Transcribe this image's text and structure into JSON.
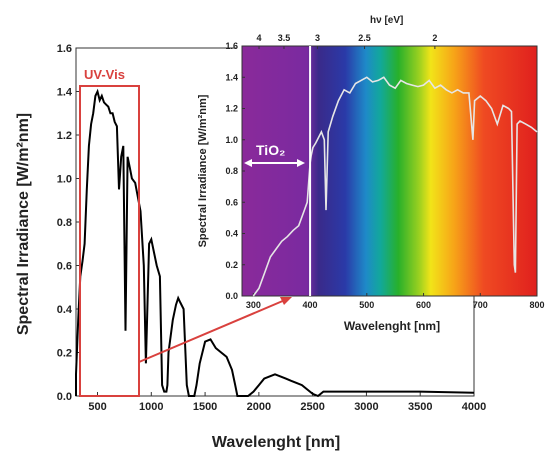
{
  "chart_data": [
    {
      "type": "line",
      "xlabel": "Wavelenght [nm]",
      "ylabel": "Spectral Irradiance [W/m²nm]",
      "xlim": [
        300,
        4000
      ],
      "ylim": [
        0,
        1.6
      ],
      "x_ticks": [
        500,
        1000,
        1500,
        2000,
        2500,
        3000,
        3500,
        4000
      ],
      "y_ticks": [
        0.0,
        0.2,
        0.4,
        0.6,
        0.8,
        1.0,
        1.2,
        1.4,
        1.6
      ],
      "series": [
        {
          "x": [
            280,
            300,
            320,
            340,
            360,
            380,
            400,
            420,
            440,
            460,
            480,
            500,
            520,
            540,
            560,
            580,
            600,
            620,
            640,
            660,
            680,
            700,
            720,
            740,
            760,
            780,
            800,
            820,
            850,
            900,
            930,
            950,
            980,
            1000,
            1050,
            1080,
            1100,
            1120,
            1140,
            1150,
            1160,
            1200,
            1230,
            1250,
            1270,
            1300,
            1330,
            1350,
            1380,
            1400,
            1420,
            1450,
            1500,
            1550,
            1600,
            1650,
            1700,
            1750,
            1780,
            1800,
            1850,
            1900,
            1950,
            2000,
            2050,
            2100,
            2150,
            2200,
            2250,
            2300,
            2350,
            2400,
            2450,
            2500,
            2550,
            2600,
            3000,
            3500,
            4000
          ],
          "y": [
            0.0,
            0.1,
            0.35,
            0.55,
            0.62,
            0.7,
            0.95,
            1.15,
            1.25,
            1.3,
            1.38,
            1.4,
            1.36,
            1.38,
            1.35,
            1.34,
            1.33,
            1.3,
            1.3,
            1.26,
            1.24,
            0.95,
            1.1,
            1.15,
            0.3,
            1.1,
            1.05,
            1.0,
            0.98,
            0.85,
            0.6,
            0.15,
            0.7,
            0.72,
            0.6,
            0.55,
            0.05,
            0.02,
            0.02,
            0.05,
            0.2,
            0.35,
            0.42,
            0.45,
            0.43,
            0.4,
            0.05,
            0.0,
            0.0,
            0.0,
            0.05,
            0.15,
            0.25,
            0.26,
            0.22,
            0.2,
            0.18,
            0.12,
            0.05,
            0.0,
            0.0,
            0.0,
            0.02,
            0.05,
            0.08,
            0.09,
            0.1,
            0.09,
            0.08,
            0.07,
            0.06,
            0.05,
            0.03,
            0.01,
            0.0,
            0.02,
            0.02,
            0.02,
            0.015
          ]
        }
      ],
      "annotations": [
        "UV-Vis"
      ],
      "colors": {
        "line": "#000000",
        "highlight": "#d9413e",
        "ylabel_sup": "2"
      }
    },
    {
      "type": "line",
      "xlabel": "Wavelenght [nm]",
      "ylabel": "Spectral Irradiance [W/m²nm]",
      "x2label": "hν [eV]",
      "xlim": [
        280,
        800
      ],
      "ylim": [
        0,
        1.6
      ],
      "x_ticks": [
        300,
        400,
        500,
        600,
        700,
        800
      ],
      "y_ticks": [
        0.0,
        0.2,
        0.4,
        0.6,
        0.8,
        1.0,
        1.2,
        1.4,
        1.6
      ],
      "x2_ticks": [
        "4",
        "3.5",
        "3",
        "2.5",
        "2"
      ],
      "x2_positions_nm": [
        310,
        354,
        413,
        496,
        620
      ],
      "marker_line_nm": 400,
      "band_label": "TiO₂",
      "series": [
        {
          "x": [
            300,
            310,
            320,
            330,
            340,
            350,
            360,
            370,
            380,
            390,
            395,
            400,
            402,
            405,
            410,
            420,
            425,
            428,
            432,
            440,
            450,
            460,
            470,
            480,
            490,
            500,
            510,
            520,
            530,
            540,
            550,
            560,
            570,
            580,
            590,
            600,
            610,
            620,
            630,
            640,
            650,
            660,
            670,
            680,
            687,
            690,
            700,
            710,
            720,
            730,
            740,
            750,
            755,
            760,
            762,
            765,
            770,
            780,
            790,
            800
          ],
          "y": [
            0.0,
            0.05,
            0.15,
            0.25,
            0.3,
            0.35,
            0.38,
            0.42,
            0.45,
            0.55,
            0.6,
            0.85,
            0.9,
            0.95,
            0.98,
            1.05,
            1.0,
            0.55,
            1.05,
            1.15,
            1.25,
            1.32,
            1.3,
            1.36,
            1.38,
            1.4,
            1.37,
            1.38,
            1.4,
            1.35,
            1.33,
            1.38,
            1.36,
            1.35,
            1.34,
            1.35,
            1.38,
            1.33,
            1.35,
            1.32,
            1.3,
            1.32,
            1.3,
            1.3,
            1.0,
            1.25,
            1.28,
            1.25,
            1.2,
            1.1,
            1.22,
            1.2,
            1.18,
            0.2,
            0.15,
            1.1,
            1.12,
            1.1,
            1.08,
            1.05
          ]
        }
      ],
      "colors": {
        "line": "#e6e6e6",
        "marker": "#ffffff"
      }
    }
  ]
}
